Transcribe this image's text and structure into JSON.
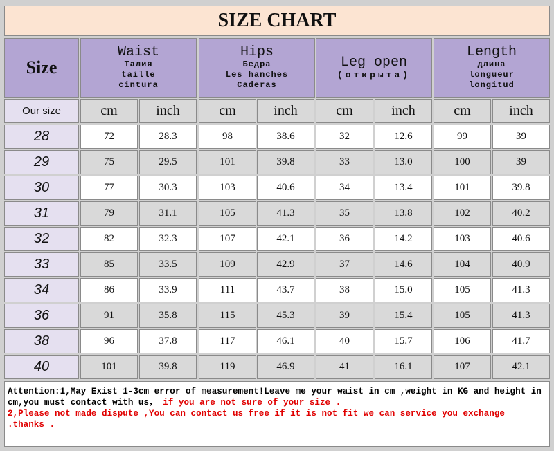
{
  "title": "SIZE CHART",
  "header": {
    "size": "Size",
    "groups": [
      {
        "name": "Waist",
        "lines": [
          "Талия",
          "taille",
          "cintura"
        ]
      },
      {
        "name": "Hips",
        "lines": [
          "Бедра",
          "Les hanches",
          "Caderas"
        ]
      },
      {
        "name": "Leg open",
        "lines": [
          "(открыта)"
        ]
      },
      {
        "name": "Length",
        "lines": [
          "длина",
          "longueur",
          "longitud"
        ]
      }
    ]
  },
  "subheader": {
    "label": "Our size",
    "units": [
      "cm",
      "inch",
      "cm",
      "inch",
      "cm",
      "inch",
      "cm",
      "inch"
    ]
  },
  "rows": [
    {
      "size": "28",
      "cells": [
        "72",
        "28.3",
        "98",
        "38.6",
        "32",
        "12.6",
        "99",
        "39"
      ]
    },
    {
      "size": "29",
      "cells": [
        "75",
        "29.5",
        "101",
        "39.8",
        "33",
        "13.0",
        "100",
        "39"
      ]
    },
    {
      "size": "30",
      "cells": [
        "77",
        "30.3",
        "103",
        "40.6",
        "34",
        "13.4",
        "101",
        "39.8"
      ]
    },
    {
      "size": "31",
      "cells": [
        "79",
        "31.1",
        "105",
        "41.3",
        "35",
        "13.8",
        "102",
        "40.2"
      ]
    },
    {
      "size": "32",
      "cells": [
        "82",
        "32.3",
        "107",
        "42.1",
        "36",
        "14.2",
        "103",
        "40.6"
      ]
    },
    {
      "size": "33",
      "cells": [
        "85",
        "33.5",
        "109",
        "42.9",
        "37",
        "14.6",
        "104",
        "40.9"
      ]
    },
    {
      "size": "34",
      "cells": [
        "86",
        "33.9",
        "111",
        "43.7",
        "38",
        "15.0",
        "105",
        "41.3"
      ]
    },
    {
      "size": "36",
      "cells": [
        "91",
        "35.8",
        "115",
        "45.3",
        "39",
        "15.4",
        "105",
        "41.3"
      ]
    },
    {
      "size": "38",
      "cells": [
        "96",
        "37.8",
        "117",
        "46.1",
        "40",
        "15.7",
        "106",
        "41.7"
      ]
    },
    {
      "size": "40",
      "cells": [
        "101",
        "39.8",
        "119",
        "46.9",
        "41",
        "16.1",
        "107",
        "42.1"
      ]
    }
  ],
  "note": {
    "black": "Attention:1,May Exist 1-3cm error of measurement!Leave me your waist in cm ,weight in KG and height in cm,you must contact with us，",
    "red1": " if you are not sure of your size .",
    "red2": "2,Please not made dispute ,You can contact us free if it is not fit  we can service you exchange .thanks ."
  }
}
